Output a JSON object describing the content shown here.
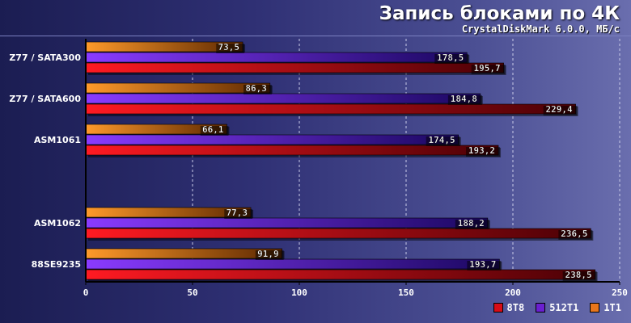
{
  "chart_data": {
    "type": "bar",
    "orientation": "horizontal",
    "title": "Запись блоками по 4К",
    "subtitle": "CrystalDiskMark 6.0.0, МБ/с",
    "xlim": [
      0,
      250
    ],
    "xticks": [
      "0",
      "50",
      "100",
      "150",
      "200",
      "250"
    ],
    "xtick_values": [
      0,
      50,
      100,
      150,
      200,
      250
    ],
    "grid": true,
    "legend_position": "bottom-right",
    "groups": [
      {
        "label": "Z77 / SATA300",
        "spacer_before": false
      },
      {
        "label": "Z77 / SATA600",
        "spacer_before": false
      },
      {
        "label": "ASM1061",
        "spacer_before": false
      },
      {
        "label": "ASM1062",
        "spacer_before": true
      },
      {
        "label": "88SE9235",
        "spacer_before": false
      }
    ],
    "series": [
      {
        "name": "1T1",
        "color": "#e8761c",
        "values": [
          73.5,
          86.3,
          66.1,
          77.3,
          91.9
        ],
        "labels": [
          "73,5",
          "86,3",
          "66,1",
          "77,3",
          "91,9"
        ]
      },
      {
        "name": "512T1",
        "color": "#6a1fd0",
        "values": [
          178.5,
          184.8,
          174.5,
          188.2,
          193.7
        ],
        "labels": [
          "178,5",
          "184,8",
          "174,5",
          "188,2",
          "193,7"
        ]
      },
      {
        "name": "8T8",
        "color": "#d80c16",
        "values": [
          195.7,
          229.4,
          193.2,
          236.5,
          238.5
        ],
        "labels": [
          "195,7",
          "229,4",
          "193,2",
          "236,5",
          "238,5"
        ]
      }
    ],
    "legend_order": [
      "8T8",
      "512T1",
      "1T1"
    ]
  }
}
